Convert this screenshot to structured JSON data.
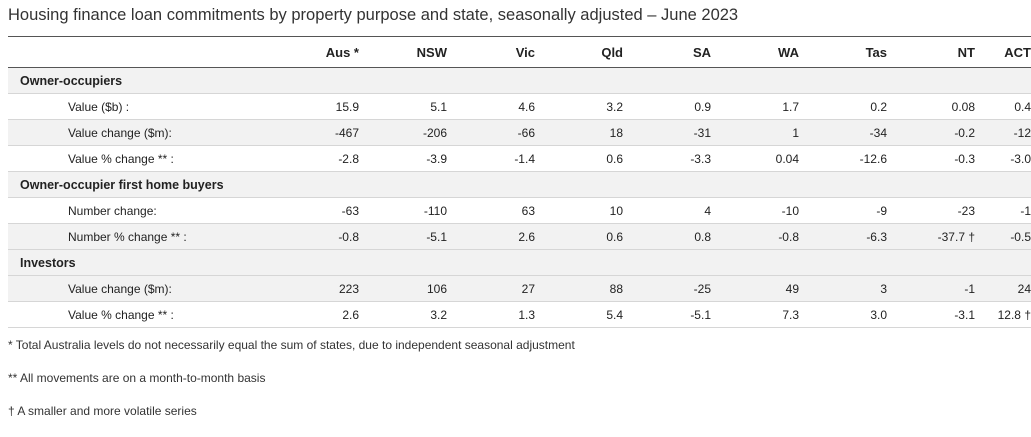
{
  "title": "Housing finance loan commitments by property purpose and state, seasonally adjusted – June 2023",
  "columns": [
    "Aus *",
    "NSW",
    "Vic",
    "Qld",
    "SA",
    "WA",
    "Tas",
    "NT",
    "ACT"
  ],
  "groups": [
    {
      "label": "Owner-occupiers",
      "rows": [
        {
          "label": "Value ($b) :",
          "values": [
            "15.9",
            "5.1",
            "4.6",
            "3.2",
            "0.9",
            "1.7",
            "0.2",
            "0.08",
            "0.4"
          ]
        },
        {
          "label": "Value change ($m):",
          "values": [
            "-467",
            "-206",
            "-66",
            "18",
            "-31",
            "1",
            "-34",
            "-0.2",
            "-12"
          ]
        },
        {
          "label": "Value % change ** :",
          "values": [
            "-2.8",
            "-3.9",
            "-1.4",
            "0.6",
            "-3.3",
            "0.04",
            "-12.6",
            "-0.3",
            "-3.0"
          ]
        }
      ]
    },
    {
      "label": "Owner-occupier first home buyers",
      "rows": [
        {
          "label": "Number change:",
          "values": [
            "-63",
            "-110",
            "63",
            "10",
            "4",
            "-10",
            "-9",
            "-23",
            "-1"
          ]
        },
        {
          "label": "Number % change ** :",
          "values": [
            "-0.8",
            "-5.1",
            "2.6",
            "0.6",
            "0.8",
            "-0.8",
            "-6.3",
            "-37.7 †",
            "-0.5"
          ]
        }
      ]
    },
    {
      "label": "Investors",
      "rows": [
        {
          "label": "Value change ($m):",
          "values": [
            "223",
            "106",
            "27",
            "88",
            "-25",
            "49",
            "3",
            "-1",
            "24"
          ]
        },
        {
          "label": "Value % change ** :",
          "values": [
            "2.6",
            "3.2",
            "1.3",
            "5.4",
            "-5.1",
            "7.3",
            "3.0",
            "-3.1",
            "12.8 †"
          ]
        }
      ]
    }
  ],
  "notes": [
    "* Total Australia levels do not necessarily equal the sum of states, due to independent seasonal adjustment",
    "** All movements are on a month-to-month basis",
    "† A smaller and more volatile series"
  ]
}
